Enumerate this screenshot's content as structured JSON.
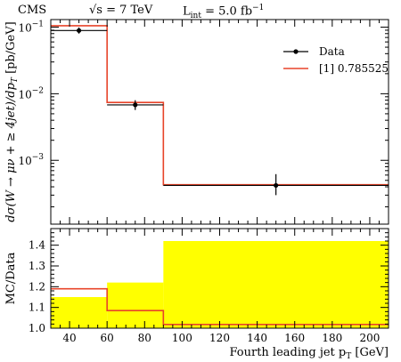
{
  "header": {
    "experiment": "CMS",
    "energy": "√s = 7 TeV",
    "luminosity": "L",
    "luminosity_sub": "int",
    "luminosity_value": " = 5.0 fb",
    "luminosity_sup": "−1"
  },
  "chart_data": [
    {
      "type": "line",
      "panel": "main",
      "ylabel": "dσ(W → μν + ≥ 4jet)/dp",
      "ylabel_sub": "T",
      "ylabel_unit": " [pb/GeV]",
      "yscale": "log",
      "ylim": [
        0.00011,
        0.13
      ],
      "xlim": [
        30,
        210
      ],
      "y_ticks": [
        {
          "value": 0.1,
          "base": "10",
          "exp": "−1"
        },
        {
          "value": 0.01,
          "base": "10",
          "exp": "−2"
        },
        {
          "value": 0.001,
          "base": "10",
          "exp": "−3"
        }
      ],
      "legend_position": "top-right",
      "series": [
        {
          "name": "Data",
          "color": "#000000",
          "marker": "circle",
          "bins": [
            [
              30,
              60
            ],
            [
              60,
              90
            ],
            [
              90,
              210
            ]
          ],
          "x": [
            45,
            75,
            150
          ],
          "values": [
            0.089,
            0.0068,
            0.00042
          ],
          "err_low": [
            0.08,
            0.0057,
            0.0003
          ],
          "err_high": [
            0.099,
            0.008,
            0.00062
          ]
        },
        {
          "name": "[1] 0.785525",
          "color": "#e8442a",
          "style": "step",
          "bins": [
            [
              30,
              60
            ],
            [
              60,
              90
            ],
            [
              90,
              210
            ]
          ],
          "values": [
            0.105,
            0.0074,
            0.00043
          ]
        }
      ]
    },
    {
      "type": "area",
      "panel": "ratio",
      "ylabel": "MC/Data",
      "xlabel": "Fourth leading jet p",
      "xlabel_sub": "T",
      "xlabel_unit": " [GeV]",
      "ylim": [
        1.0,
        1.48
      ],
      "xlim": [
        30,
        210
      ],
      "y_ticks": [
        "1.0",
        "1.1",
        "1.2",
        "1.3",
        "1.4"
      ],
      "x_ticks": [
        "40",
        "60",
        "80",
        "100",
        "120",
        "140",
        "160",
        "180",
        "200"
      ],
      "band": {
        "color": "#ffff00",
        "bins": [
          [
            30,
            60
          ],
          [
            60,
            90
          ],
          [
            90,
            210
          ]
        ],
        "values": [
          1.15,
          1.22,
          1.42
        ]
      },
      "series": [
        {
          "color": "#e8442a",
          "style": "step",
          "bins": [
            [
              30,
              60
            ],
            [
              60,
              90
            ],
            [
              90,
              210
            ]
          ],
          "values": [
            1.19,
            1.085,
            1.018
          ]
        },
        {
          "color": "#000000",
          "style": "reference",
          "values": [
            1.0
          ]
        }
      ]
    }
  ]
}
